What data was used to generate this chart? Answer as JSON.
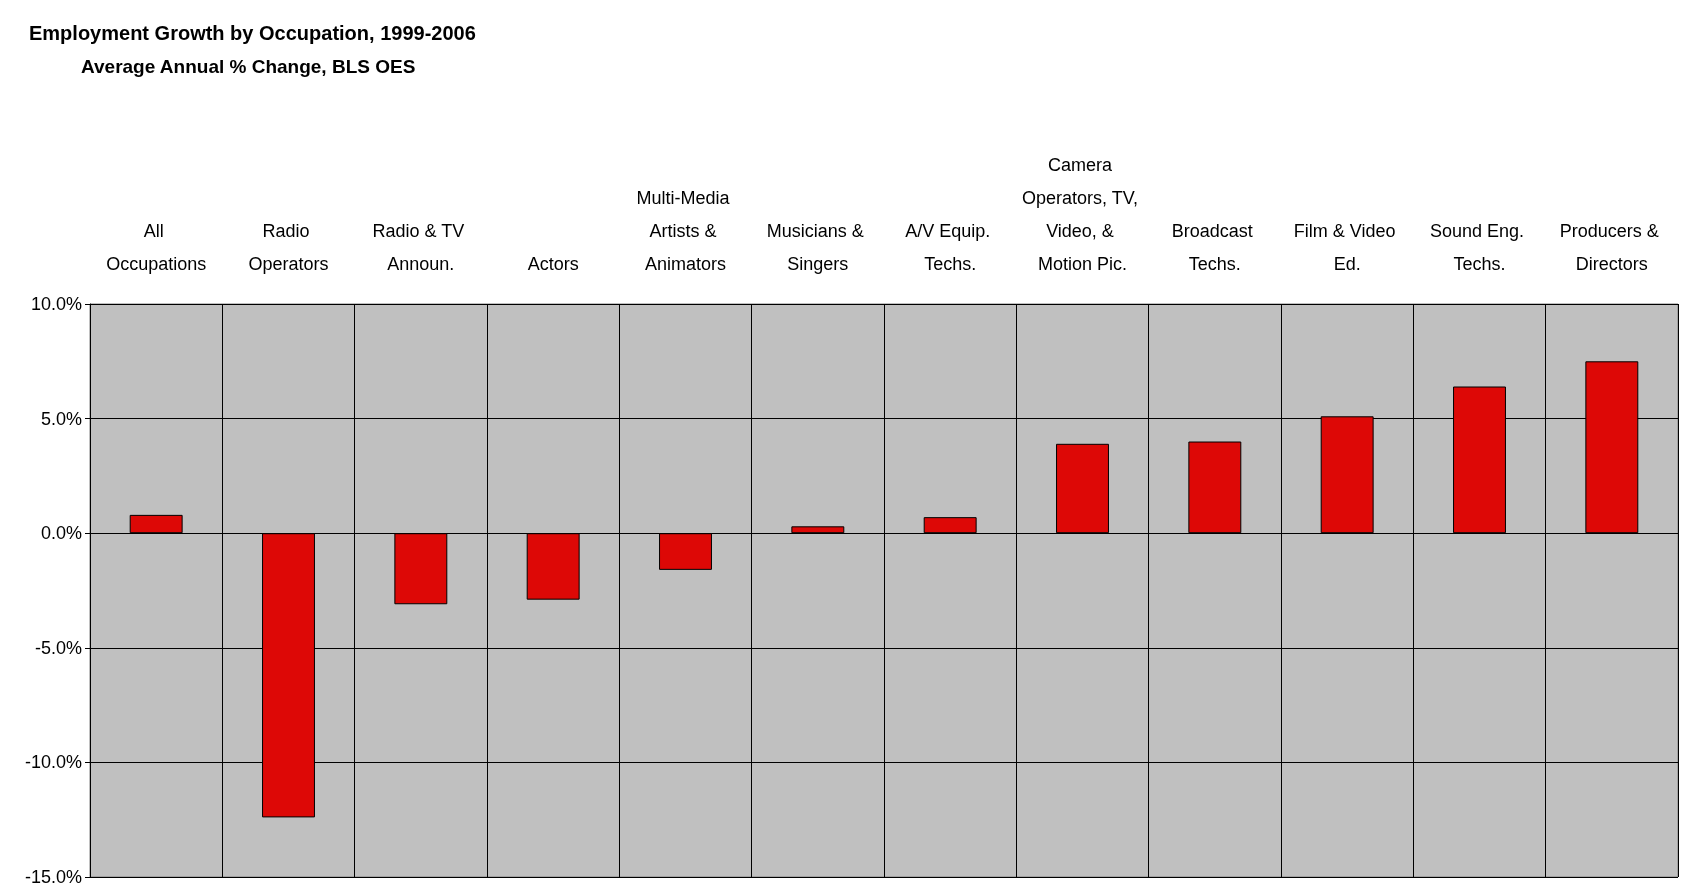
{
  "chart_data": {
    "type": "bar",
    "title": "Employment Growth by Occupation, 1999-2006",
    "subtitle": "Average Annual % Change, BLS OES",
    "categories": [
      "All Occupations",
      "Radio Operators",
      "Radio & TV Announ.",
      "Actors",
      "Multi-Media Artists & Animators",
      "Musicians & Singers",
      "A/V Equip. Techs.",
      "Camera Operators, TV, Video, & Motion Pic.",
      "Broadcast Techs.",
      "Film & Video Ed.",
      "Sound Eng. Techs.",
      "Producers & Directors"
    ],
    "values": [
      0.8,
      -12.4,
      -3.1,
      -2.9,
      -1.6,
      0.3,
      0.7,
      3.9,
      4.0,
      5.1,
      6.4,
      7.5
    ],
    "color": "#dd0806",
    "ylim": [
      -15,
      10
    ],
    "yticks": [
      {
        "value": -15,
        "label": "-15.0%"
      },
      {
        "value": -10,
        "label": "-10.0%"
      },
      {
        "value": -5,
        "label": "-5.0%"
      },
      {
        "value": 0,
        "label": "0.0%"
      },
      {
        "value": 5,
        "label": "5.0%"
      },
      {
        "value": 10,
        "label": "10.0%"
      }
    ],
    "grid": true
  }
}
